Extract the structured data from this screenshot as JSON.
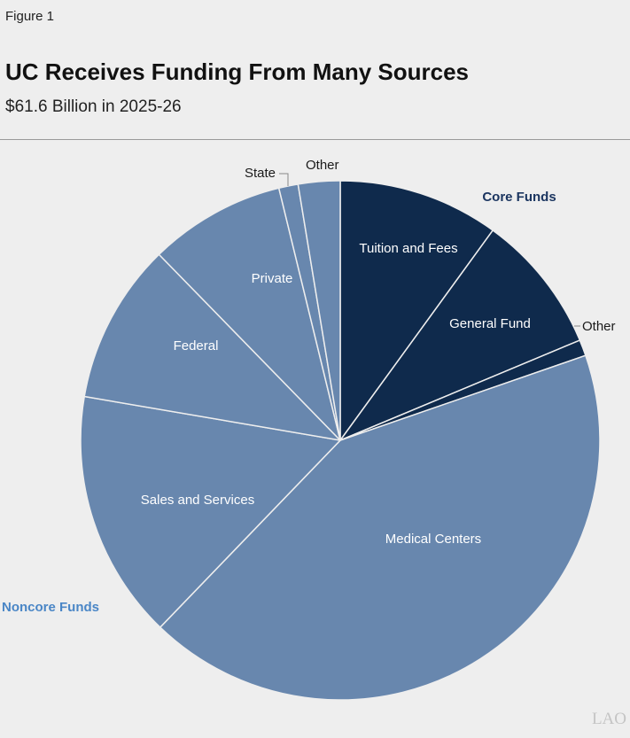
{
  "figure_label": "Figure 1",
  "title": "UC Receives Funding From Many Sources",
  "subtitle": "$61.6 Billion in 2025-26",
  "watermark": "LAO",
  "colors": {
    "core": "#0f2a4c",
    "noncore": "#6887ae",
    "divider": "#eeeeee",
    "core_label": "#1b3560",
    "noncore_label": "#4a86c6"
  },
  "chart_data": {
    "type": "pie",
    "total_billions": 61.6,
    "start_angle_deg": 0,
    "direction": "clockwise",
    "groups": [
      {
        "name": "Core Funds",
        "color_key": "core"
      },
      {
        "name": "Noncore Funds",
        "color_key": "noncore"
      }
    ],
    "slices": [
      {
        "label": "Tuition and Fees",
        "share": 0.1,
        "group": "Core Funds"
      },
      {
        "label": "General Fund",
        "share": 0.087,
        "group": "Core Funds"
      },
      {
        "label": "Other",
        "share": 0.01,
        "group": "Core Funds"
      },
      {
        "label": "Medical Centers",
        "share": 0.425,
        "group": "Noncore Funds"
      },
      {
        "label": "Sales and Services",
        "share": 0.155,
        "group": "Noncore Funds"
      },
      {
        "label": "Federal",
        "share": 0.1,
        "group": "Noncore Funds"
      },
      {
        "label": "Private",
        "share": 0.085,
        "group": "Noncore Funds"
      },
      {
        "label": "State",
        "share": 0.012,
        "group": "Noncore Funds"
      },
      {
        "label": "Other",
        "share": 0.026,
        "group": "Noncore Funds"
      }
    ]
  }
}
